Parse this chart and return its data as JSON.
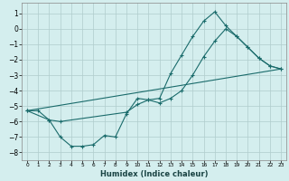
{
  "xlabel": "Humidex (Indice chaleur)",
  "ylabel": "",
  "bg_color": "#d4eeee",
  "grid_color": "#b0cccc",
  "line_color": "#1a6b6b",
  "xlim": [
    -0.5,
    23.5
  ],
  "ylim": [
    -8.5,
    1.7
  ],
  "xticks": [
    0,
    1,
    2,
    3,
    4,
    5,
    6,
    7,
    8,
    9,
    10,
    11,
    12,
    13,
    14,
    15,
    16,
    17,
    18,
    19,
    20,
    21,
    22,
    23
  ],
  "yticks": [
    -8,
    -7,
    -6,
    -5,
    -4,
    -3,
    -2,
    -1,
    0,
    1
  ],
  "curve1_x": [
    0,
    1,
    2,
    3,
    4,
    5,
    6,
    7,
    8,
    9,
    10,
    11,
    12,
    13,
    14,
    15,
    16,
    17,
    18,
    19,
    20,
    21,
    22,
    23
  ],
  "curve1_y": [
    -5.3,
    -5.3,
    -5.9,
    -7.0,
    -7.6,
    -7.6,
    -7.5,
    -6.9,
    -7.0,
    -5.5,
    -4.5,
    -4.6,
    -4.5,
    -2.9,
    -1.7,
    -0.5,
    0.5,
    1.1,
    0.2,
    -0.5,
    -1.2,
    -1.9,
    -2.4,
    -2.6
  ],
  "curve2_x": [
    0,
    2,
    3,
    9,
    10,
    11,
    12,
    13,
    14,
    15,
    16,
    17,
    18,
    19,
    20,
    21,
    22,
    23
  ],
  "curve2_y": [
    -5.3,
    -5.9,
    -6.0,
    -5.4,
    -4.9,
    -4.6,
    -4.8,
    -4.5,
    -4.0,
    -3.0,
    -1.8,
    -0.8,
    0.0,
    -0.5,
    -1.2,
    -1.9,
    -2.4,
    -2.6
  ],
  "curve3_x": [
    0,
    23
  ],
  "curve3_y": [
    -5.3,
    -2.6
  ]
}
